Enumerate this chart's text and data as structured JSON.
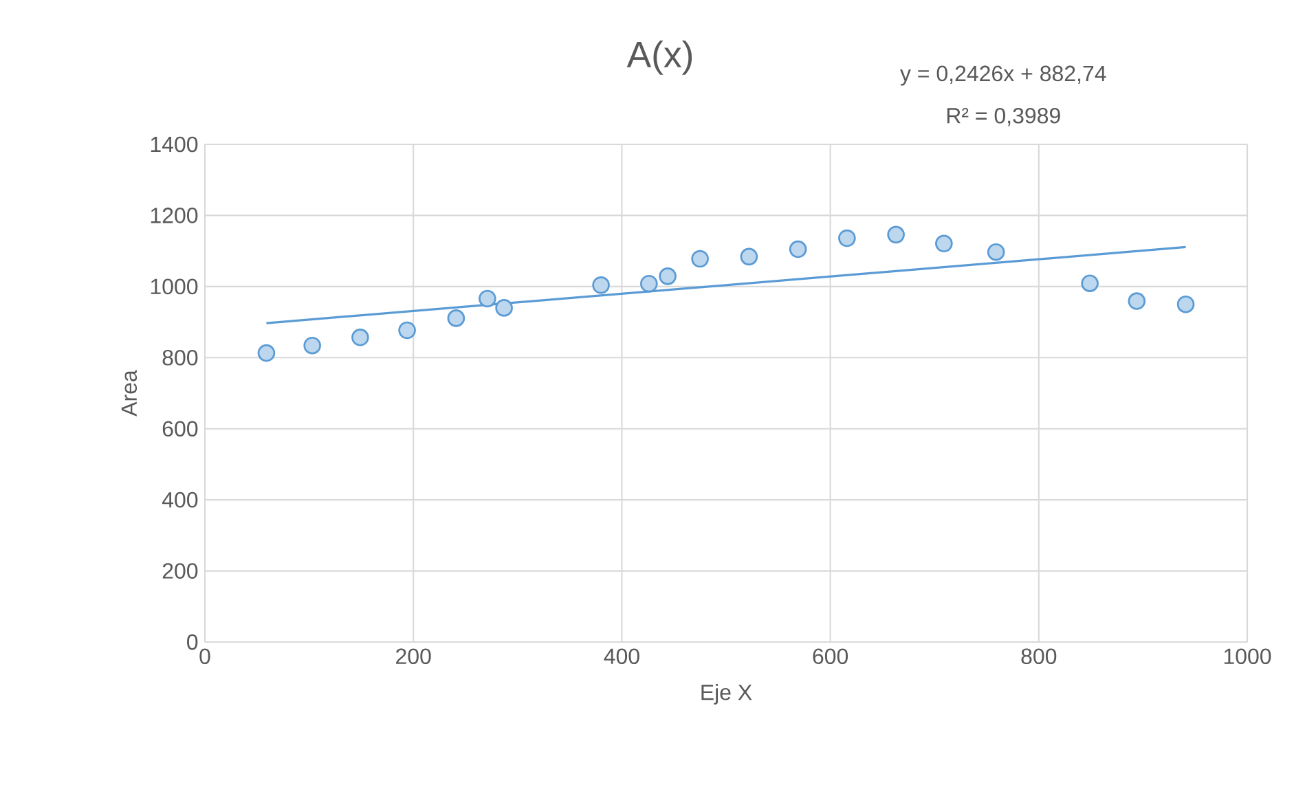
{
  "chart_data": {
    "type": "scatter",
    "title": "A(x)",
    "xlabel": "Eje X",
    "ylabel": "Area",
    "annotations": [
      "y = 0,2426x + 882,74",
      "R² = 0,3989"
    ],
    "xlim": [
      0,
      1000
    ],
    "xticks": [
      0,
      200,
      400,
      600,
      800,
      1000
    ],
    "ylim": [
      0,
      1400
    ],
    "yticks": [
      0,
      200,
      400,
      600,
      800,
      1000,
      1200,
      1400
    ],
    "grid": true,
    "series": [
      {
        "marker": "circle",
        "color": "#5b9bd5",
        "x": [
          59,
          103,
          149,
          194,
          241,
          271,
          287,
          380,
          426,
          444,
          475,
          522,
          569,
          616,
          663,
          709,
          759,
          849,
          894,
          941
        ],
        "values": [
          813,
          834,
          857,
          877,
          911,
          966,
          940,
          1004,
          1008,
          1029,
          1078,
          1084,
          1105,
          1136,
          1146,
          1121,
          1097,
          1009,
          959,
          950
        ]
      },
      {
        "type": "line",
        "color": "#5b9bd5",
        "x": [
          59,
          941
        ],
        "values": [
          897,
          1111
        ]
      }
    ]
  }
}
